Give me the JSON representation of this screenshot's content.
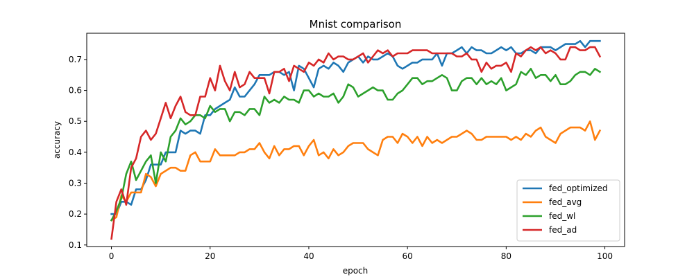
{
  "chart_data": {
    "type": "line",
    "title": "Mnist comparison",
    "xlabel": "epoch",
    "ylabel": "accuracy",
    "xlim": [
      -5,
      104
    ],
    "ylim": [
      0.095,
      0.785
    ],
    "xticks": [
      0,
      20,
      40,
      60,
      80,
      100
    ],
    "yticks": [
      0.1,
      0.2,
      0.3,
      0.4,
      0.5,
      0.6,
      0.7
    ],
    "grid": false,
    "legend_position": "lower-right",
    "series": [
      {
        "name": "fed_optimized",
        "color": "#1f77b4",
        "values": [
          0.2,
          0.2,
          0.24,
          0.24,
          0.23,
          0.28,
          0.28,
          0.31,
          0.36,
          0.36,
          0.36,
          0.4,
          0.4,
          0.4,
          0.47,
          0.46,
          0.47,
          0.47,
          0.46,
          0.52,
          0.52,
          0.54,
          0.55,
          0.56,
          0.57,
          0.61,
          0.58,
          0.58,
          0.6,
          0.62,
          0.65,
          0.65,
          0.65,
          0.66,
          0.66,
          0.65,
          0.66,
          0.6,
          0.68,
          0.67,
          0.64,
          0.61,
          0.67,
          0.68,
          0.67,
          0.69,
          0.68,
          0.66,
          0.69,
          0.7,
          0.71,
          0.69,
          0.71,
          0.7,
          0.7,
          0.71,
          0.72,
          0.71,
          0.68,
          0.67,
          0.68,
          0.69,
          0.69,
          0.7,
          0.7,
          0.7,
          0.72,
          0.68,
          0.72,
          0.72,
          0.73,
          0.74,
          0.72,
          0.74,
          0.73,
          0.73,
          0.72,
          0.72,
          0.73,
          0.74,
          0.73,
          0.74,
          0.72,
          0.72,
          0.73,
          0.73,
          0.72,
          0.74,
          0.74,
          0.74,
          0.73,
          0.74,
          0.75,
          0.75,
          0.75,
          0.76,
          0.74,
          0.76,
          0.76,
          0.76
        ]
      },
      {
        "name": "fed_avg",
        "color": "#ff7f0e",
        "values": [
          0.18,
          0.19,
          0.26,
          0.24,
          0.27,
          0.27,
          0.27,
          0.33,
          0.32,
          0.29,
          0.33,
          0.34,
          0.35,
          0.35,
          0.34,
          0.34,
          0.39,
          0.4,
          0.37,
          0.37,
          0.37,
          0.41,
          0.39,
          0.39,
          0.39,
          0.39,
          0.4,
          0.4,
          0.41,
          0.41,
          0.43,
          0.4,
          0.38,
          0.42,
          0.39,
          0.41,
          0.41,
          0.42,
          0.42,
          0.39,
          0.42,
          0.44,
          0.39,
          0.4,
          0.38,
          0.41,
          0.39,
          0.4,
          0.42,
          0.43,
          0.43,
          0.43,
          0.41,
          0.4,
          0.39,
          0.44,
          0.45,
          0.45,
          0.43,
          0.46,
          0.45,
          0.43,
          0.45,
          0.42,
          0.45,
          0.43,
          0.44,
          0.43,
          0.44,
          0.45,
          0.45,
          0.46,
          0.47,
          0.46,
          0.44,
          0.44,
          0.45,
          0.45,
          0.45,
          0.45,
          0.45,
          0.44,
          0.45,
          0.44,
          0.46,
          0.45,
          0.47,
          0.48,
          0.45,
          0.44,
          0.43,
          0.46,
          0.47,
          0.48,
          0.48,
          0.48,
          0.47,
          0.5,
          0.44,
          0.47
        ]
      },
      {
        "name": "fed_wl",
        "color": "#2ca02c",
        "values": [
          0.18,
          0.21,
          0.25,
          0.33,
          0.37,
          0.31,
          0.34,
          0.37,
          0.39,
          0.3,
          0.4,
          0.37,
          0.45,
          0.47,
          0.51,
          0.49,
          0.5,
          0.52,
          0.52,
          0.51,
          0.55,
          0.53,
          0.54,
          0.54,
          0.5,
          0.53,
          0.53,
          0.52,
          0.54,
          0.54,
          0.52,
          0.58,
          0.56,
          0.57,
          0.56,
          0.58,
          0.57,
          0.57,
          0.56,
          0.6,
          0.6,
          0.58,
          0.59,
          0.58,
          0.58,
          0.59,
          0.56,
          0.58,
          0.62,
          0.61,
          0.58,
          0.59,
          0.6,
          0.61,
          0.6,
          0.6,
          0.57,
          0.57,
          0.59,
          0.6,
          0.62,
          0.64,
          0.64,
          0.62,
          0.63,
          0.63,
          0.64,
          0.65,
          0.64,
          0.6,
          0.6,
          0.63,
          0.64,
          0.64,
          0.62,
          0.64,
          0.62,
          0.63,
          0.62,
          0.64,
          0.6,
          0.61,
          0.62,
          0.66,
          0.65,
          0.67,
          0.64,
          0.65,
          0.65,
          0.63,
          0.65,
          0.62,
          0.62,
          0.63,
          0.65,
          0.66,
          0.66,
          0.65,
          0.67,
          0.66
        ]
      },
      {
        "name": "fed_ad",
        "color": "#d62728",
        "values": [
          0.12,
          0.24,
          0.28,
          0.23,
          0.35,
          0.38,
          0.45,
          0.47,
          0.44,
          0.46,
          0.51,
          0.56,
          0.51,
          0.55,
          0.58,
          0.53,
          0.52,
          0.52,
          0.58,
          0.58,
          0.64,
          0.6,
          0.68,
          0.63,
          0.6,
          0.66,
          0.61,
          0.62,
          0.66,
          0.64,
          0.64,
          0.64,
          0.59,
          0.66,
          0.66,
          0.67,
          0.63,
          0.68,
          0.67,
          0.66,
          0.69,
          0.68,
          0.7,
          0.69,
          0.72,
          0.7,
          0.71,
          0.71,
          0.7,
          0.7,
          0.71,
          0.72,
          0.69,
          0.71,
          0.73,
          0.72,
          0.73,
          0.71,
          0.72,
          0.72,
          0.72,
          0.73,
          0.73,
          0.73,
          0.73,
          0.72,
          0.72,
          0.72,
          0.72,
          0.72,
          0.71,
          0.71,
          0.72,
          0.7,
          0.7,
          0.66,
          0.69,
          0.67,
          0.68,
          0.68,
          0.69,
          0.66,
          0.72,
          0.71,
          0.73,
          0.74,
          0.73,
          0.74,
          0.72,
          0.73,
          0.72,
          0.7,
          0.7,
          0.74,
          0.74,
          0.73,
          0.73,
          0.74,
          0.74,
          0.71
        ]
      }
    ]
  }
}
